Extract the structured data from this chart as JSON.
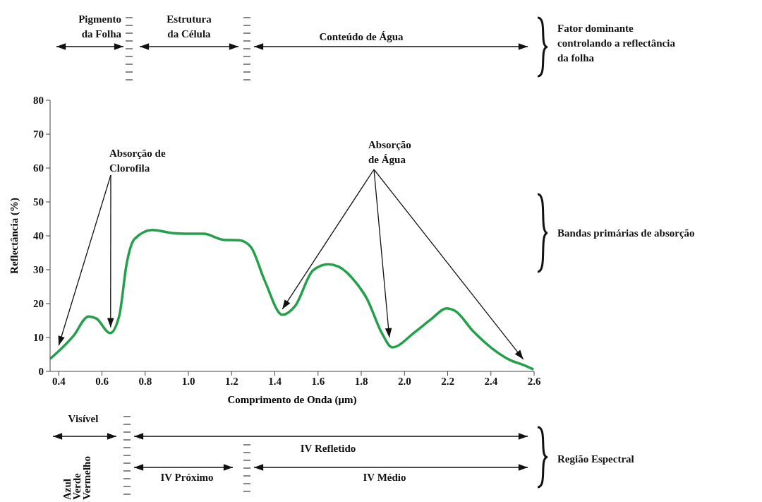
{
  "chart_data": {
    "type": "line",
    "xlabel": "Comprimento de Onda (μm)",
    "ylabel": "Reflectância (%)",
    "x": [
      0.36,
      0.4,
      0.467,
      0.538,
      0.574,
      0.638,
      0.68,
      0.715,
      0.75,
      0.833,
      0.928,
      1.01,
      1.07,
      1.164,
      1.235,
      1.288,
      1.353,
      1.435,
      1.494,
      1.577,
      1.648,
      1.695,
      1.778,
      1.825,
      1.896,
      1.943,
      2.05,
      2.125,
      2.195,
      2.233,
      2.32,
      2.405,
      2.49,
      2.55,
      2.597
    ],
    "series": [
      {
        "color": "#23a04a",
        "values": [
          3.7,
          6,
          10.4,
          16.2,
          15.6,
          11.3,
          16.4,
          32,
          39,
          41.7,
          40.8,
          40.6,
          40.6,
          38.8,
          38.7,
          36.8,
          26.8,
          16.7,
          19.3,
          29.8,
          31.6,
          30.9,
          26,
          21.6,
          11.2,
          7.1,
          11.7,
          15.5,
          18.6,
          17.9,
          11.7,
          6.8,
          3.3,
          1.9,
          0.6
        ]
      }
    ],
    "xlim": [
      0.36,
      2.6
    ],
    "ylim": [
      0,
      80
    ],
    "xticks": [
      0.4,
      0.6,
      0.8,
      {
        "value": 1,
        "label": "1.0"
      },
      1.2,
      1.4,
      1.6,
      1.8,
      {
        "value": 2,
        "label": "2.0"
      },
      2.2,
      2.4,
      2.6
    ],
    "yticks": [
      0,
      10,
      20,
      30,
      40,
      50,
      60,
      70,
      80
    ],
    "marker": "none",
    "line_style": "solid",
    "annotations": [
      {
        "text": "Absorção de\nClorofila",
        "x": 0.64,
        "y": 13
      },
      {
        "text": "Absorção\nde Água",
        "x": 1.93,
        "y": 10
      },
      "Pigmento\nda Folha",
      "Estrutura\nda Célula",
      "Conteúdo de Água",
      "Fator dominante\ncontrolando a reflectância\nda folha",
      "Bandas primárias de absorção",
      "Visível",
      "Azul",
      "Verde",
      "Vermelho",
      "IV Refletido",
      "IV Próximo",
      "IV Médio",
      "Região Espectral"
    ]
  }
}
